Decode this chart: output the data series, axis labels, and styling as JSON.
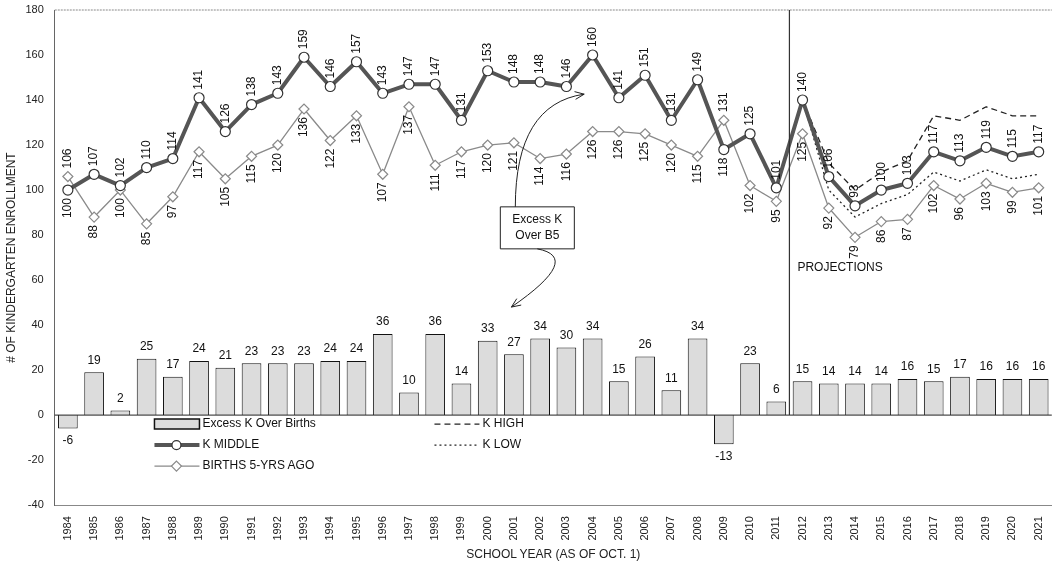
{
  "chart_data": {
    "type": "bar",
    "xlabel": "SCHOOL YEAR (AS OF OCT. 1)",
    "ylabel": "# OF KINDERGARTEN ENROLLMENT",
    "categories": [
      "1984",
      "1985",
      "1986",
      "1987",
      "1988",
      "1989",
      "1990",
      "1991",
      "1992",
      "1993",
      "1994",
      "1995",
      "1996",
      "1997",
      "1998",
      "1999",
      "2000",
      "2001",
      "2002",
      "2003",
      "2004",
      "2005",
      "2006",
      "2007",
      "2008",
      "2009",
      "2010",
      "2011",
      "2012",
      "2013",
      "2014",
      "2015",
      "2016",
      "2017",
      "2018",
      "2019",
      "2020",
      "2021"
    ],
    "series": [
      {
        "name": "Excess K Over Births",
        "color": "#dcdcdc",
        "data_labels": true,
        "values": [
          -6,
          19,
          2,
          25,
          17,
          24,
          21,
          23,
          23,
          23,
          24,
          24,
          36,
          10,
          36,
          14,
          33,
          27,
          34,
          30,
          34,
          15,
          26,
          11,
          34,
          -13,
          23,
          6,
          15,
          14,
          14,
          14,
          16,
          15,
          17,
          16,
          16,
          16
        ]
      },
      {
        "name": "K MIDDLE",
        "type": "line",
        "color": "#555555",
        "marker": "circle",
        "data_labels": true,
        "values": [
          100,
          107,
          102,
          110,
          114,
          141,
          126,
          138,
          143,
          159,
          146,
          157,
          143,
          147,
          147,
          131,
          153,
          148,
          148,
          146,
          160,
          141,
          151,
          131,
          149,
          118,
          125,
          101,
          140,
          106,
          93,
          100,
          103,
          117,
          113,
          119,
          115,
          117
        ]
      },
      {
        "name": "BIRTHS 5-YRS AGO",
        "type": "line",
        "color": "#8a8a8a",
        "marker": "diamond",
        "data_labels": true,
        "values": [
          106,
          88,
          100,
          85,
          97,
          117,
          105,
          115,
          120,
          136,
          122,
          133,
          107,
          137,
          111,
          117,
          120,
          121,
          114,
          116,
          126,
          126,
          125,
          120,
          115,
          131,
          102,
          95,
          125,
          92,
          79,
          86,
          87,
          102,
          96,
          103,
          99,
          101
        ]
      },
      {
        "name": "K HIGH",
        "type": "line",
        "color": "#222222",
        "marker": "none",
        "line_style": "dashed",
        "values": [
          null,
          null,
          null,
          null,
          null,
          null,
          null,
          null,
          null,
          null,
          null,
          null,
          null,
          null,
          null,
          null,
          null,
          null,
          null,
          null,
          null,
          null,
          null,
          null,
          null,
          null,
          null,
          null,
          140,
          112,
          100,
          108,
          113,
          133,
          131,
          137,
          133,
          133
        ]
      },
      {
        "name": "K LOW",
        "type": "line",
        "color": "#222222",
        "marker": "none",
        "line_style": "dotted",
        "values": [
          null,
          null,
          null,
          null,
          null,
          null,
          null,
          null,
          null,
          null,
          null,
          null,
          null,
          null,
          null,
          null,
          null,
          null,
          null,
          null,
          null,
          null,
          null,
          null,
          null,
          null,
          null,
          null,
          140,
          100,
          88,
          94,
          98,
          108,
          104,
          109,
          105,
          107
        ]
      }
    ],
    "ylim": [
      -40,
      180
    ],
    "yticks": [
      -40,
      -20,
      0,
      20,
      40,
      60,
      80,
      100,
      120,
      140,
      160,
      180
    ],
    "ref_lines": [
      {
        "axis": "x",
        "value": "2012",
        "label": "PROJECTIONS",
        "color": "#333333"
      }
    ],
    "annotations": [
      "Excess K\nOver B5"
    ],
    "grid": false,
    "legend": "bottom left"
  }
}
